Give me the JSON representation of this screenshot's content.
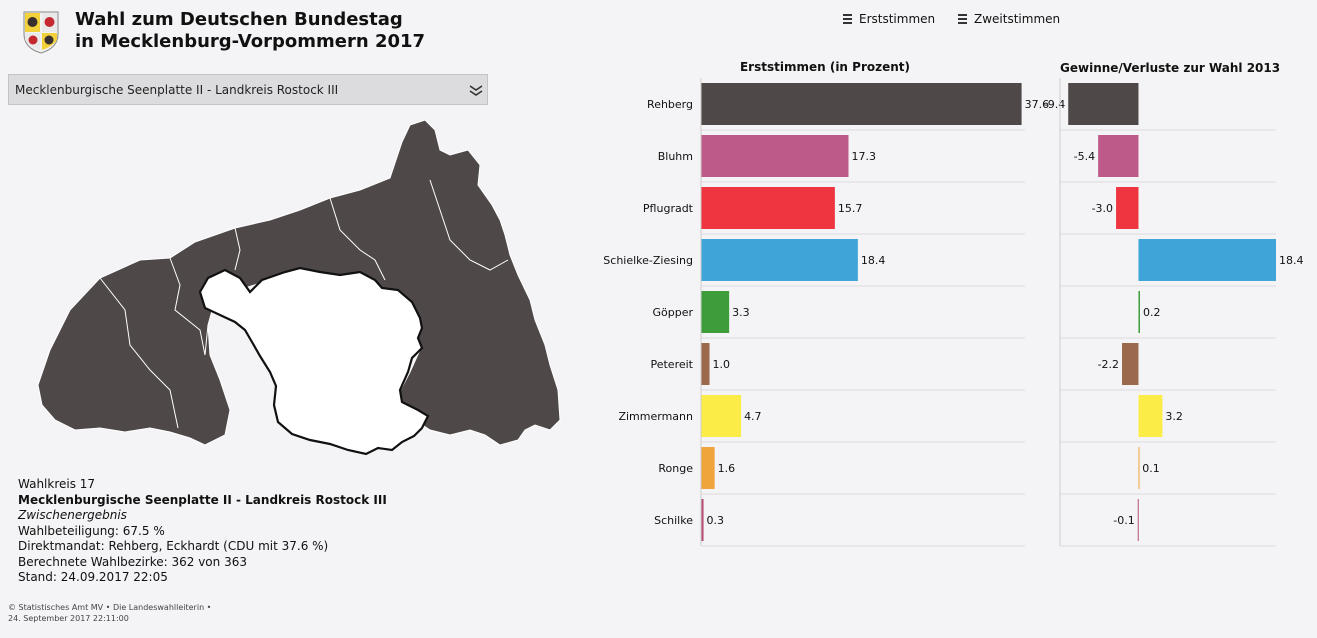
{
  "header": {
    "title_line1": "Wahl zum Deutschen Bundestag",
    "title_line2": "in Mecklenburg-Vorpommern 2017",
    "menu_erst": "Erststimmen",
    "menu_zweit": "Zweitstimmen"
  },
  "dropdown": {
    "selected": "Mecklenburgische Seenplatte II - Landkreis Rostock III"
  },
  "info": {
    "wahlkreis": "Wahlkreis 17",
    "name": "Mecklenburgische Seenplatte II - Landkreis Rostock III",
    "status": "Zwischenergebnis",
    "turnout": "Wahlbeteiligung: 67.5 %",
    "mandate": "Direktmandat: Rehberg, Eckhardt (CDU mit 37.6 %)",
    "districts": "Berechnete Wahlbezirke: 362 von 363",
    "stand": "Stand: 24.09.2017 22:05"
  },
  "footer": {
    "line1": "© Statistisches Amt MV • Die Landeswahlleiterin •",
    "line2": "24. September 2017 22:11:00"
  },
  "colors": {
    "map_fill": "#4f4849",
    "map_selected": "#ffffff",
    "grid": "#dddddd"
  },
  "chart_data": [
    {
      "type": "bar",
      "orientation": "horizontal",
      "title": "Erststimmen (in Prozent)",
      "categories": [
        "Rehberg",
        "Bluhm",
        "Pflugradt",
        "Schielke-Ziesing",
        "Göpper",
        "Petereit",
        "Zimmermann",
        "Ronge",
        "Schilke"
      ],
      "values": [
        37.6,
        17.3,
        15.7,
        18.4,
        3.3,
        1.0,
        4.7,
        1.6,
        0.3
      ],
      "value_labels": [
        "37.6",
        "17.3",
        "15.7",
        "18.4",
        "3.3",
        "1.0",
        "4.7",
        "1.6",
        "0.3"
      ],
      "colors": [
        "#4f4849",
        "#bd5a8a",
        "#ee3540",
        "#3fa5d8",
        "#3e9c3a",
        "#9b6a4c",
        "#fbec47",
        "#f0a43c",
        "#b94f79"
      ],
      "xlim": [
        0,
        38
      ]
    },
    {
      "type": "bar",
      "orientation": "horizontal",
      "title": "Gewinne/Verluste zur Wahl 2013",
      "categories": [
        "Rehberg",
        "Bluhm",
        "Pflugradt",
        "Schielke-Ziesing",
        "Göpper",
        "Petereit",
        "Zimmermann",
        "Ronge",
        "Schilke"
      ],
      "values": [
        -9.4,
        -5.4,
        -3.0,
        18.4,
        0.2,
        -2.2,
        3.2,
        0.1,
        -0.1
      ],
      "value_labels": [
        "-9.4",
        "-5.4",
        "-3.0",
        "18.4",
        "0.2",
        "-2.2",
        "3.2",
        "0.1",
        "-0.1"
      ],
      "colors": [
        "#4f4849",
        "#bd5a8a",
        "#ee3540",
        "#3fa5d8",
        "#3e9c3a",
        "#9b6a4c",
        "#fbec47",
        "#f0a43c",
        "#b94f79"
      ],
      "xlim": [
        -10.5,
        18.4
      ]
    }
  ]
}
